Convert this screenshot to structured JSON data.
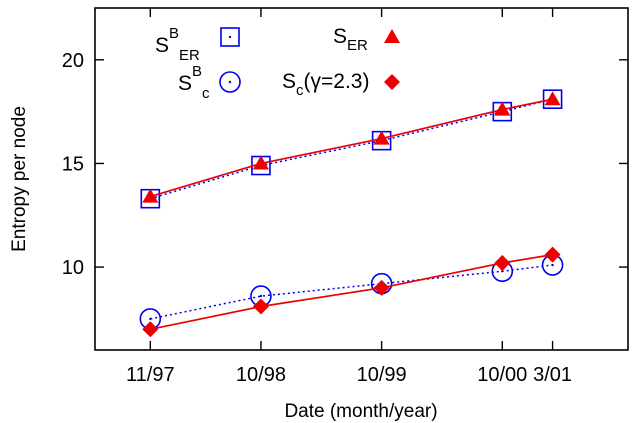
{
  "chart_data": {
    "type": "line",
    "xlabel": "Date (month/year)",
    "ylabel": "Entropy per node",
    "x": [
      "11/97",
      "10/98",
      "10/99",
      "10/00",
      "3/01"
    ],
    "x_months": [
      0,
      11,
      23,
      35,
      40
    ],
    "xlim_months": [
      -5.5,
      47.5
    ],
    "ylim": [
      6.0,
      22.5
    ],
    "yticks": [
      10,
      15,
      20
    ],
    "grid": false,
    "legend_position": "top",
    "series": [
      {
        "key": "sb_er",
        "legend": {
          "base": "S",
          "sup": "B",
          "sub": "ER"
        },
        "marker": "open-square",
        "line": "dotted",
        "color": "#0000ee",
        "values": [
          13.3,
          14.9,
          16.1,
          17.5,
          18.1
        ]
      },
      {
        "key": "s_er",
        "legend": {
          "base": "S",
          "sub": "ER"
        },
        "marker": "filled-triangle",
        "line": "solid",
        "color": "#ee0000",
        "values": [
          13.4,
          15.0,
          16.2,
          17.6,
          18.1
        ]
      },
      {
        "key": "sb_c",
        "legend": {
          "base": "S",
          "sup": "B",
          "sub": "c"
        },
        "marker": "open-circle",
        "line": "dotted",
        "color": "#0000ee",
        "values": [
          7.5,
          8.6,
          9.2,
          9.8,
          10.1
        ]
      },
      {
        "key": "s_c",
        "legend": {
          "base": "S",
          "sub": "c",
          "tail": "(γ=2.3)"
        },
        "marker": "filled-diamond",
        "line": "solid",
        "color": "#ee0000",
        "values": [
          7.0,
          8.1,
          9.0,
          10.2,
          10.6
        ]
      }
    ]
  }
}
